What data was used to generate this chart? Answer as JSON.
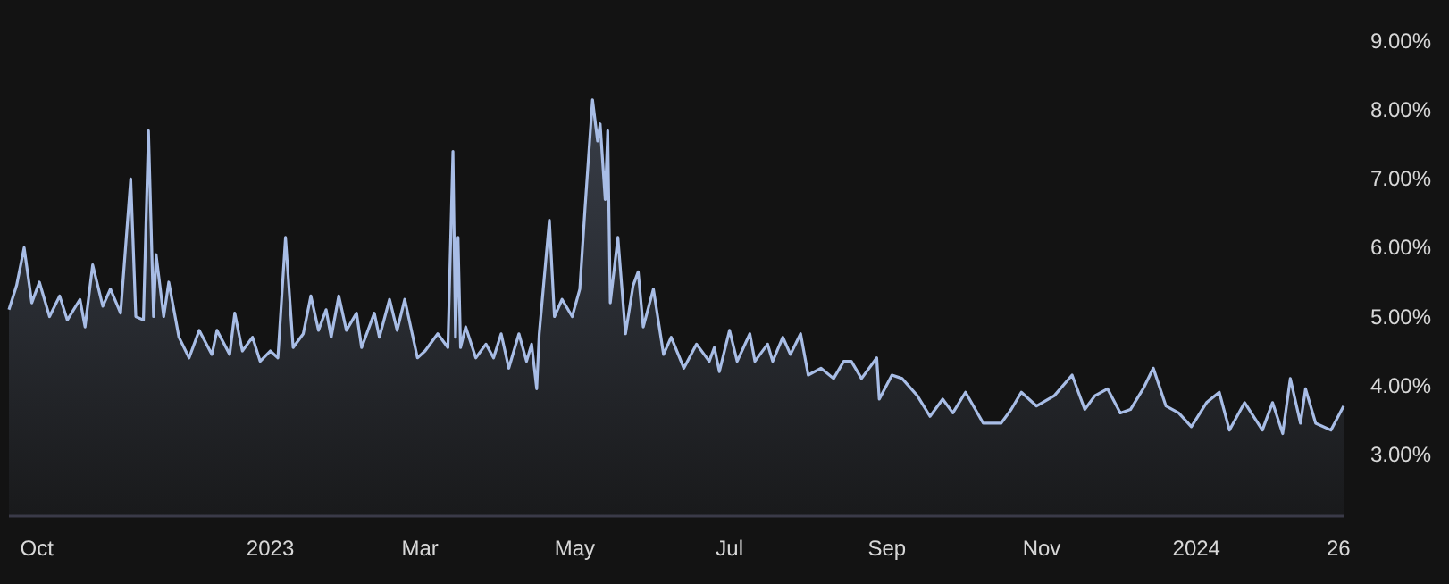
{
  "chart_data": {
    "type": "area",
    "xlim": [
      "2022-09-20",
      "2024-02-28"
    ],
    "xticks": [
      {
        "value": "2022-10-01",
        "label": "Oct"
      },
      {
        "value": "2023-01-01",
        "label": "2023"
      },
      {
        "value": "2023-03-01",
        "label": "Mar"
      },
      {
        "value": "2023-05-01",
        "label": "May"
      },
      {
        "value": "2023-07-01",
        "label": "Jul"
      },
      {
        "value": "2023-09-01",
        "label": "Sep"
      },
      {
        "value": "2023-11-01",
        "label": "Nov"
      },
      {
        "value": "2024-01-01",
        "label": "2024"
      },
      {
        "value": "2024-02-26",
        "label": "26"
      }
    ],
    "ylim": [
      2.1,
      9.6
    ],
    "yticks": [
      {
        "value": 3,
        "label": "3.00%"
      },
      {
        "value": 4,
        "label": "4.00%"
      },
      {
        "value": 5,
        "label": "5.00%"
      },
      {
        "value": 6,
        "label": "6.00%"
      },
      {
        "value": 7,
        "label": "7.00%"
      },
      {
        "value": 8,
        "label": "8.00%"
      },
      {
        "value": 9,
        "label": "9.00%"
      }
    ],
    "x": [
      "2022-09-20",
      "2022-09-23",
      "2022-09-26",
      "2022-09-29",
      "2022-10-02",
      "2022-10-06",
      "2022-10-10",
      "2022-10-13",
      "2022-10-18",
      "2022-10-20",
      "2022-10-23",
      "2022-10-27",
      "2022-10-30",
      "2022-11-03",
      "2022-11-07",
      "2022-11-09",
      "2022-11-12",
      "2022-11-14",
      "2022-11-16",
      "2022-11-17",
      "2022-11-20",
      "2022-11-22",
      "2022-11-26",
      "2022-11-30",
      "2022-12-04",
      "2022-12-09",
      "2022-12-11",
      "2022-12-16",
      "2022-12-18",
      "2022-12-21",
      "2022-12-25",
      "2022-12-28",
      "2023-01-01",
      "2023-01-04",
      "2023-01-07",
      "2023-01-10",
      "2023-01-14",
      "2023-01-17",
      "2023-01-20",
      "2023-01-23",
      "2023-01-25",
      "2023-01-28",
      "2023-01-31",
      "2023-02-04",
      "2023-02-06",
      "2023-02-11",
      "2023-02-13",
      "2023-02-17",
      "2023-02-20",
      "2023-02-23",
      "2023-02-28",
      "2023-03-03",
      "2023-03-08",
      "2023-03-12",
      "2023-03-14",
      "2023-03-15",
      "2023-03-16",
      "2023-03-17",
      "2023-03-19",
      "2023-03-23",
      "2023-03-27",
      "2023-03-30",
      "2023-04-02",
      "2023-04-05",
      "2023-04-09",
      "2023-04-12",
      "2023-04-14",
      "2023-04-16",
      "2023-04-17",
      "2023-04-21",
      "2023-04-23",
      "2023-04-26",
      "2023-04-30",
      "2023-05-03",
      "2023-05-05",
      "2023-05-08",
      "2023-05-10",
      "2023-05-11",
      "2023-05-13",
      "2023-05-14",
      "2023-05-15",
      "2023-05-18",
      "2023-05-21",
      "2023-05-24",
      "2023-05-26",
      "2023-05-28",
      "2023-06-01",
      "2023-06-05",
      "2023-06-08",
      "2023-06-13",
      "2023-06-18",
      "2023-06-23",
      "2023-06-25",
      "2023-06-27",
      "2023-07-01",
      "2023-07-04",
      "2023-07-09",
      "2023-07-11",
      "2023-07-16",
      "2023-07-18",
      "2023-07-22",
      "2023-07-25",
      "2023-07-29",
      "2023-08-01",
      "2023-08-06",
      "2023-08-11",
      "2023-08-15",
      "2023-08-18",
      "2023-08-22",
      "2023-08-28",
      "2023-08-29",
      "2023-09-03",
      "2023-09-07",
      "2023-09-13",
      "2023-09-18",
      "2023-09-23",
      "2023-09-27",
      "2023-10-02",
      "2023-10-09",
      "2023-10-16",
      "2023-10-20",
      "2023-10-24",
      "2023-10-30",
      "2023-11-06",
      "2023-11-13",
      "2023-11-18",
      "2023-11-22",
      "2023-11-27",
      "2023-12-02",
      "2023-12-06",
      "2023-12-11",
      "2023-12-15",
      "2023-12-20",
      "2023-12-25",
      "2023-12-30",
      "2024-01-05",
      "2024-01-10",
      "2024-01-14",
      "2024-01-20",
      "2024-01-27",
      "2024-01-31",
      "2024-02-04",
      "2024-02-07",
      "2024-02-11",
      "2024-02-13",
      "2024-02-17",
      "2024-02-23",
      "2024-02-28"
    ],
    "series": [
      {
        "color": "#a8bde6",
        "values": [
          5.1,
          5.45,
          6.0,
          5.2,
          5.5,
          5.0,
          5.3,
          4.95,
          5.25,
          4.85,
          5.75,
          5.15,
          5.4,
          5.05,
          7.0,
          5.0,
          4.95,
          7.7,
          5.0,
          5.9,
          5.0,
          5.5,
          4.7,
          4.4,
          4.8,
          4.45,
          4.8,
          4.45,
          5.05,
          4.5,
          4.7,
          4.35,
          4.5,
          4.4,
          6.15,
          4.55,
          4.75,
          5.3,
          4.8,
          5.1,
          4.7,
          5.3,
          4.8,
          5.05,
          4.55,
          5.05,
          4.7,
          5.25,
          4.8,
          5.25,
          4.4,
          4.5,
          4.75,
          4.55,
          7.4,
          4.7,
          6.15,
          4.55,
          4.85,
          4.4,
          4.6,
          4.4,
          4.75,
          4.25,
          4.75,
          4.35,
          4.6,
          3.95,
          4.75,
          6.4,
          5.0,
          5.25,
          5.0,
          5.4,
          6.55,
          8.15,
          7.55,
          7.8,
          6.7,
          7.7,
          5.2,
          6.15,
          4.75,
          5.45,
          5.65,
          4.85,
          5.4,
          4.45,
          4.7,
          4.25,
          4.6,
          4.35,
          4.55,
          4.2,
          4.8,
          4.35,
          4.75,
          4.35,
          4.6,
          4.35,
          4.7,
          4.45,
          4.75,
          4.15,
          4.25,
          4.1,
          4.35,
          4.35,
          4.1,
          4.4,
          3.8,
          4.15,
          4.1,
          3.85,
          3.55,
          3.8,
          3.6,
          3.9,
          3.45,
          3.45,
          3.65,
          3.9,
          3.7,
          3.85,
          4.15,
          3.65,
          3.85,
          3.95,
          3.6,
          3.65,
          3.95,
          4.25,
          3.7,
          3.6,
          3.4,
          3.75,
          3.9,
          3.35,
          3.75,
          3.35,
          3.75,
          3.3,
          4.1,
          3.45,
          3.95,
          3.45,
          3.35,
          3.7
        ]
      }
    ]
  }
}
